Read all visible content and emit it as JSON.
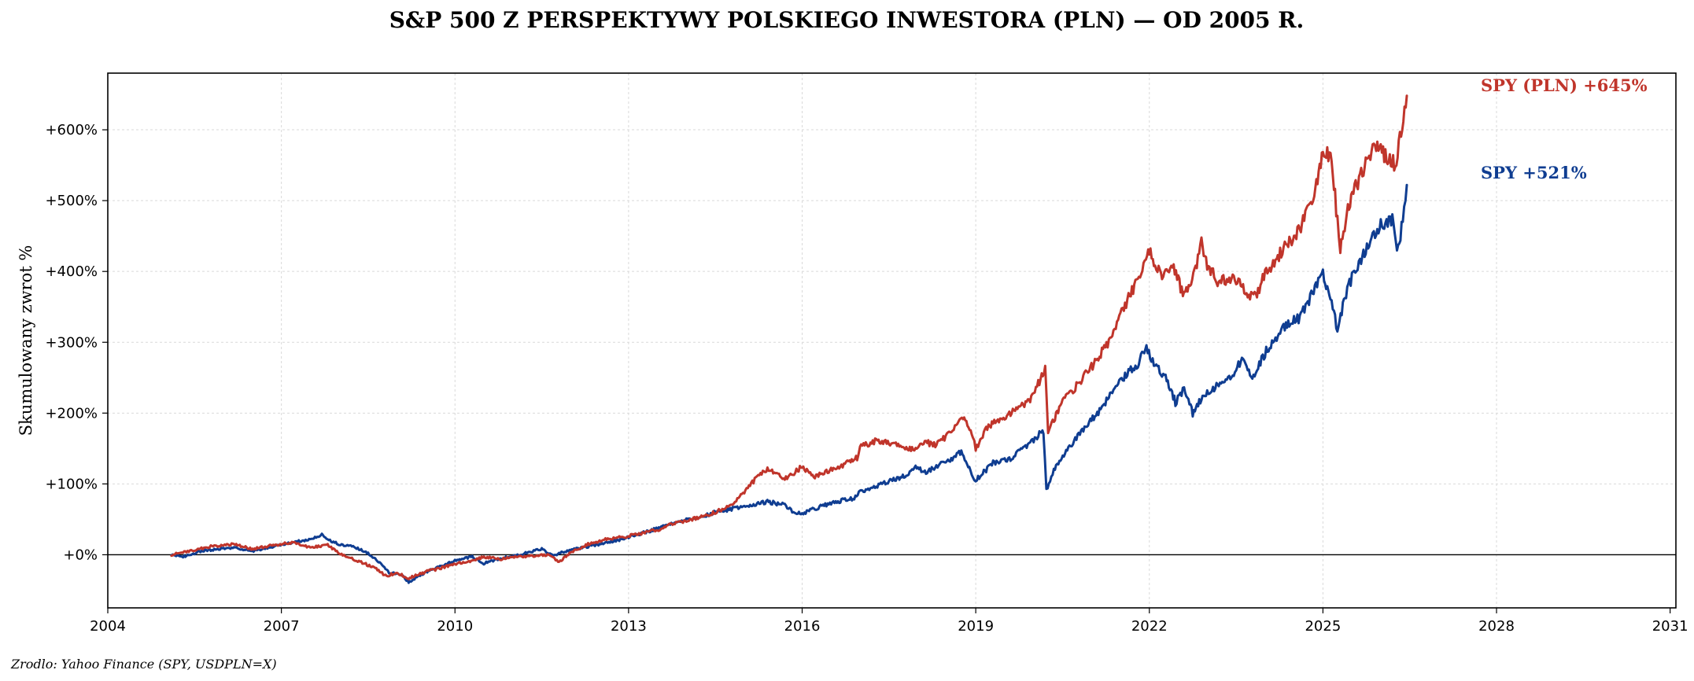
{
  "source": "Zrodlo: Yahoo Finance (SPY, USDPLN=X)",
  "colors": {
    "pln": "#c0352b",
    "usd": "#0f3d91",
    "zero_line": "#000000",
    "grid": "#d9d9d9"
  },
  "chart_data": {
    "type": "line",
    "title": "S&P 500 Z PERSPEKTYWY POLSKIEGO INWESTORA (PLN) — OD 2005 R.",
    "xlabel": "",
    "ylabel": "Skumulowany zwrot %",
    "xlim": [
      2004,
      2031.1
    ],
    "ylim": [
      -75,
      680
    ],
    "x_ticks": [
      2004,
      2007,
      2010,
      2013,
      2016,
      2019,
      2022,
      2025,
      2028,
      2031
    ],
    "x_tick_labels": [
      "2004",
      "2007",
      "2010",
      "2013",
      "2016",
      "2019",
      "2022",
      "2025",
      "2028",
      "2031"
    ],
    "y_ticks": [
      0,
      100,
      200,
      300,
      400,
      500,
      600
    ],
    "y_tick_labels": [
      "+0%",
      "+100%",
      "+200%",
      "+300%",
      "+400%",
      "+500%",
      "+600%"
    ],
    "grid": true,
    "reference_line_y": 0,
    "annotations": [
      {
        "text": "SPY (PLN)  +645%",
        "series": "pln"
      },
      {
        "text": "SPY  +521%",
        "series": "usd"
      }
    ],
    "series": [
      {
        "id": "pln",
        "name": "SPY (PLN)",
        "color": "#c0352b",
        "points": [
          [
            2005.1,
            0
          ],
          [
            2005.4,
            5
          ],
          [
            2005.8,
            12
          ],
          [
            2006.2,
            15
          ],
          [
            2006.5,
            8
          ],
          [
            2006.9,
            14
          ],
          [
            2007.2,
            17
          ],
          [
            2007.5,
            10
          ],
          [
            2007.8,
            14
          ],
          [
            2008.0,
            2
          ],
          [
            2008.3,
            -8
          ],
          [
            2008.6,
            -18
          ],
          [
            2008.8,
            -30
          ],
          [
            2009.0,
            -26
          ],
          [
            2009.2,
            -33
          ],
          [
            2009.5,
            -24
          ],
          [
            2009.8,
            -18
          ],
          [
            2010.0,
            -13
          ],
          [
            2010.3,
            -8
          ],
          [
            2010.5,
            -3
          ],
          [
            2010.8,
            -6
          ],
          [
            2011.0,
            -3
          ],
          [
            2011.3,
            -2
          ],
          [
            2011.6,
            0
          ],
          [
            2011.8,
            -10
          ],
          [
            2012.0,
            3
          ],
          [
            2012.3,
            15
          ],
          [
            2012.6,
            22
          ],
          [
            2012.9,
            25
          ],
          [
            2013.2,
            30
          ],
          [
            2013.5,
            35
          ],
          [
            2013.8,
            45
          ],
          [
            2014.1,
            50
          ],
          [
            2014.5,
            60
          ],
          [
            2014.8,
            72
          ],
          [
            2015.0,
            88
          ],
          [
            2015.2,
            108
          ],
          [
            2015.4,
            120
          ],
          [
            2015.7,
            108
          ],
          [
            2015.9,
            118
          ],
          [
            2016.0,
            125
          ],
          [
            2016.2,
            110
          ],
          [
            2016.5,
            120
          ],
          [
            2016.8,
            130
          ],
          [
            2016.95,
            137
          ],
          [
            2017.0,
            152
          ],
          [
            2017.3,
            162
          ],
          [
            2017.6,
            155
          ],
          [
            2017.9,
            148
          ],
          [
            2018.1,
            160
          ],
          [
            2018.3,
            155
          ],
          [
            2018.6,
            175
          ],
          [
            2018.8,
            195
          ],
          [
            2018.95,
            168
          ],
          [
            2019.0,
            150
          ],
          [
            2019.2,
            180
          ],
          [
            2019.5,
            195
          ],
          [
            2019.8,
            210
          ],
          [
            2020.0,
            225
          ],
          [
            2020.2,
            265
          ],
          [
            2020.25,
            175
          ],
          [
            2020.35,
            190
          ],
          [
            2020.5,
            215
          ],
          [
            2020.8,
            245
          ],
          [
            2021.0,
            265
          ],
          [
            2021.3,
            300
          ],
          [
            2021.6,
            355
          ],
          [
            2021.9,
            405
          ],
          [
            2022.0,
            430
          ],
          [
            2022.2,
            395
          ],
          [
            2022.4,
            410
          ],
          [
            2022.6,
            365
          ],
          [
            2022.8,
            400
          ],
          [
            2022.9,
            440
          ],
          [
            2023.0,
            410
          ],
          [
            2023.2,
            385
          ],
          [
            2023.5,
            390
          ],
          [
            2023.8,
            360
          ],
          [
            2024.0,
            395
          ],
          [
            2024.3,
            430
          ],
          [
            2024.6,
            460
          ],
          [
            2024.85,
            505
          ],
          [
            2025.0,
            575
          ],
          [
            2025.15,
            560
          ],
          [
            2025.25,
            470
          ],
          [
            2025.3,
            435
          ],
          [
            2025.45,
            495
          ],
          [
            2025.7,
            545
          ],
          [
            2025.9,
            580
          ],
          [
            2026.1,
            562
          ],
          [
            2026.25,
            550
          ],
          [
            2026.35,
            595
          ],
          [
            2026.45,
            648
          ]
        ]
      },
      {
        "id": "usd",
        "name": "SPY",
        "color": "#0f3d91",
        "points": [
          [
            2005.1,
            0
          ],
          [
            2005.3,
            -3
          ],
          [
            2005.6,
            5
          ],
          [
            2005.9,
            8
          ],
          [
            2006.2,
            10
          ],
          [
            2006.5,
            5
          ],
          [
            2006.9,
            12
          ],
          [
            2007.2,
            18
          ],
          [
            2007.5,
            22
          ],
          [
            2007.7,
            28
          ],
          [
            2007.8,
            22
          ],
          [
            2008.0,
            15
          ],
          [
            2008.3,
            10
          ],
          [
            2008.5,
            2
          ],
          [
            2008.7,
            -12
          ],
          [
            2008.9,
            -28
          ],
          [
            2009.0,
            -25
          ],
          [
            2009.2,
            -38
          ],
          [
            2009.4,
            -28
          ],
          [
            2009.7,
            -18
          ],
          [
            2010.0,
            -8
          ],
          [
            2010.3,
            -3
          ],
          [
            2010.5,
            -12
          ],
          [
            2010.8,
            -5
          ],
          [
            2011.2,
            2
          ],
          [
            2011.5,
            8
          ],
          [
            2011.7,
            -2
          ],
          [
            2011.9,
            5
          ],
          [
            2012.2,
            10
          ],
          [
            2012.5,
            15
          ],
          [
            2012.8,
            20
          ],
          [
            2013.0,
            25
          ],
          [
            2013.3,
            32
          ],
          [
            2013.6,
            40
          ],
          [
            2013.9,
            48
          ],
          [
            2014.2,
            52
          ],
          [
            2014.5,
            60
          ],
          [
            2014.8,
            65
          ],
          [
            2015.0,
            68
          ],
          [
            2015.4,
            75
          ],
          [
            2015.7,
            70
          ],
          [
            2015.85,
            60
          ],
          [
            2016.0,
            58
          ],
          [
            2016.2,
            65
          ],
          [
            2016.6,
            75
          ],
          [
            2016.9,
            80
          ],
          [
            2017.0,
            88
          ],
          [
            2017.4,
            100
          ],
          [
            2017.8,
            112
          ],
          [
            2018.0,
            125
          ],
          [
            2018.1,
            115
          ],
          [
            2018.5,
            132
          ],
          [
            2018.75,
            145
          ],
          [
            2018.95,
            110
          ],
          [
            2019.0,
            105
          ],
          [
            2019.3,
            130
          ],
          [
            2019.6,
            135
          ],
          [
            2019.9,
            155
          ],
          [
            2020.1,
            170
          ],
          [
            2020.17,
            175
          ],
          [
            2020.22,
            90
          ],
          [
            2020.35,
            120
          ],
          [
            2020.6,
            150
          ],
          [
            2020.9,
            180
          ],
          [
            2021.2,
            210
          ],
          [
            2021.5,
            245
          ],
          [
            2021.8,
            270
          ],
          [
            2021.95,
            295
          ],
          [
            2022.1,
            265
          ],
          [
            2022.3,
            250
          ],
          [
            2022.45,
            215
          ],
          [
            2022.6,
            235
          ],
          [
            2022.75,
            200
          ],
          [
            2022.9,
            220
          ],
          [
            2023.1,
            235
          ],
          [
            2023.4,
            250
          ],
          [
            2023.6,
            275
          ],
          [
            2023.8,
            250
          ],
          [
            2024.0,
            285
          ],
          [
            2024.3,
            320
          ],
          [
            2024.6,
            335
          ],
          [
            2024.9,
            380
          ],
          [
            2025.0,
            395
          ],
          [
            2025.15,
            360
          ],
          [
            2025.25,
            315
          ],
          [
            2025.4,
            370
          ],
          [
            2025.6,
            410
          ],
          [
            2025.8,
            440
          ],
          [
            2026.0,
            465
          ],
          [
            2026.2,
            475
          ],
          [
            2026.3,
            430
          ],
          [
            2026.38,
            475
          ],
          [
            2026.45,
            522
          ]
        ]
      }
    ]
  }
}
